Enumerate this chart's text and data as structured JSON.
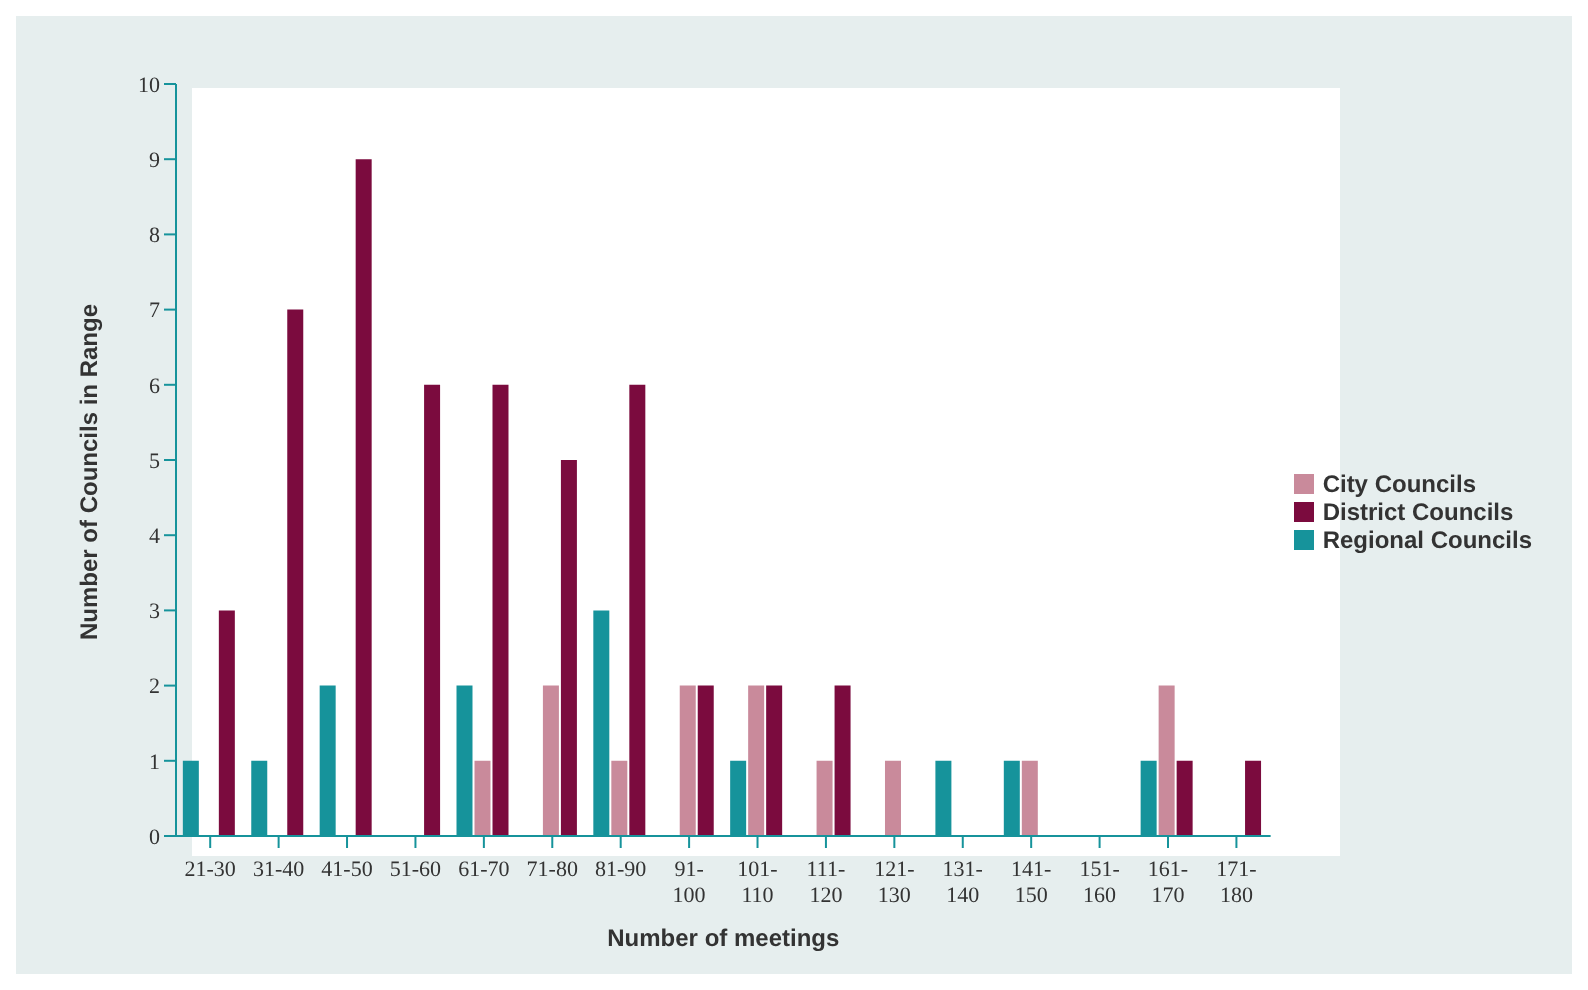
{
  "chart_data": {
    "type": "bar",
    "xlabel": "Number of meetings",
    "ylabel": "Number of Councils in Range",
    "categories": [
      "21-30",
      "31-40",
      "41-50",
      "51-60",
      "61-70",
      "71-80",
      "81-90",
      "91-100",
      "101-110",
      "111-120",
      "121-130",
      "131-140",
      "141-150",
      "151-160",
      "161-170",
      "171-180"
    ],
    "series": [
      {
        "name": "Regional Councils",
        "color": "#16939b",
        "values": [
          1,
          1,
          2,
          null,
          2,
          null,
          3,
          null,
          1,
          null,
          null,
          1,
          1,
          null,
          1,
          null
        ]
      },
      {
        "name": "City Councils",
        "color": "#c98a9b",
        "values": [
          null,
          null,
          null,
          null,
          1,
          2,
          1,
          2,
          2,
          1,
          1,
          null,
          1,
          null,
          2,
          null
        ]
      },
      {
        "name": "District Councils",
        "color": "#7b0b3e",
        "values": [
          3,
          7,
          9,
          6,
          6,
          5,
          6,
          2,
          2,
          2,
          null,
          null,
          null,
          null,
          1,
          1
        ]
      }
    ],
    "ylim": [
      0,
      10
    ],
    "yticks": [
      0,
      1,
      2,
      3,
      4,
      5,
      6,
      7,
      8,
      9,
      10
    ],
    "legend": "right"
  }
}
